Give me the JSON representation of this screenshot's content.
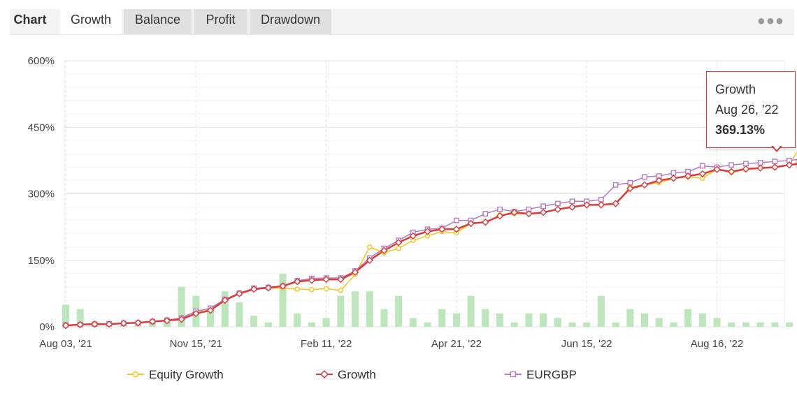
{
  "tabs": [
    {
      "label": "Chart"
    },
    {
      "label": "Growth"
    },
    {
      "label": "Balance"
    },
    {
      "label": "Profit"
    },
    {
      "label": "Drawdown"
    }
  ],
  "more_icon": "more-horizontal-icon",
  "tooltip": {
    "title": "Growth",
    "date": "Aug 26, '22",
    "value": "369.13%"
  },
  "chart_data": {
    "type": "line",
    "title": "",
    "y_ticks": [
      "0%",
      "150%",
      "300%",
      "450%",
      "600%"
    ],
    "ylim": [
      0,
      600
    ],
    "x_tick_labels": [
      "Aug 03, '21",
      "Nov 15, '21",
      "Feb 11, '22",
      "Apr 21, '22",
      "Jun 15, '22",
      "Aug 16, '22"
    ],
    "x_tick_indices": [
      0,
      9,
      18,
      27,
      36,
      45
    ],
    "grid": true,
    "legend_position": "bottom",
    "colors": {
      "equity": "#f5c518",
      "growth": "#d93c3c",
      "eurgbp": "#b07cc6",
      "bars": "#bde6bd"
    },
    "series": [
      {
        "name": "Equity Growth",
        "values": [
          3,
          5,
          8,
          6,
          8,
          9,
          12,
          15,
          20,
          35,
          40,
          60,
          75,
          85,
          88,
          87,
          85,
          84,
          86,
          82,
          118,
          180,
          167,
          177,
          195,
          205,
          215,
          212,
          233,
          236,
          252,
          255,
          255,
          258,
          265,
          270,
          275,
          275,
          278,
          315,
          320,
          325,
          335,
          338,
          335,
          355,
          348,
          355,
          358,
          360,
          365,
          420
        ]
      },
      {
        "name": "Growth",
        "values": [
          3,
          5,
          6,
          6,
          8,
          9,
          12,
          14,
          17,
          30,
          37,
          60,
          75,
          85,
          88,
          92,
          102,
          105,
          107,
          107,
          123,
          150,
          172,
          190,
          205,
          215,
          220,
          220,
          233,
          236,
          250,
          258,
          255,
          258,
          265,
          270,
          275,
          275,
          278,
          312,
          320,
          330,
          335,
          340,
          345,
          355,
          350,
          356,
          358,
          360,
          365,
          369.13
        ]
      },
      {
        "name": "EURGBP",
        "values": [
          4,
          5,
          6,
          7,
          8,
          9,
          12,
          15,
          20,
          35,
          42,
          62,
          76,
          87,
          89,
          92,
          104,
          109,
          110,
          110,
          126,
          155,
          177,
          195,
          213,
          220,
          222,
          240,
          240,
          255,
          265,
          260,
          265,
          272,
          278,
          283,
          283,
          287,
          320,
          325,
          338,
          340,
          347,
          350,
          363,
          360,
          365,
          368,
          370,
          373,
          375,
          379
        ]
      }
    ],
    "bars": [
      50,
      40,
      0,
      5,
      5,
      5,
      10,
      10,
      90,
      70,
      40,
      80,
      55,
      25,
      10,
      120,
      30,
      10,
      20,
      70,
      80,
      80,
      40,
      70,
      20,
      10,
      40,
      30,
      70,
      40,
      30,
      10,
      30,
      30,
      20,
      10,
      10,
      70,
      10,
      40,
      30,
      20,
      10,
      40,
      30,
      20,
      10,
      10,
      10,
      10,
      10,
      0
    ]
  }
}
